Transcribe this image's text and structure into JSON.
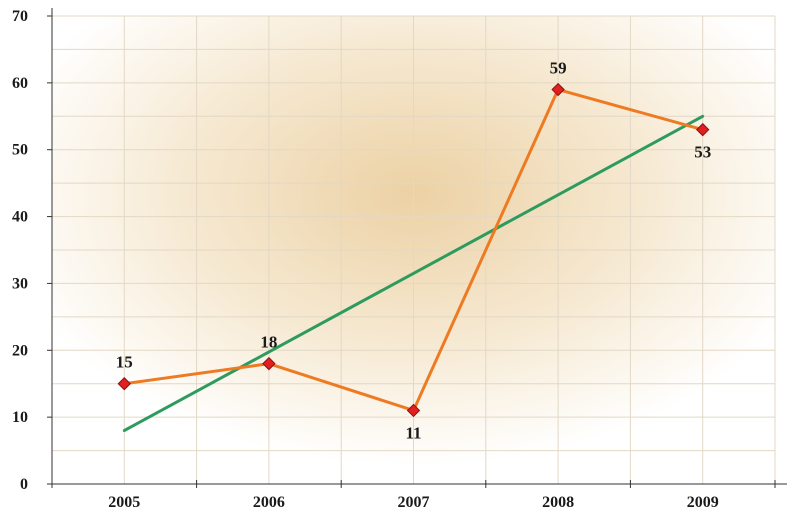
{
  "chart_data": {
    "type": "line",
    "title": "",
    "xlabel": "",
    "ylabel": "",
    "categories": [
      "2005",
      "2006",
      "2007",
      "2008",
      "2009"
    ],
    "ylim": [
      0,
      70
    ],
    "yticks": [
      0,
      10,
      20,
      30,
      40,
      50,
      60,
      70
    ],
    "grid": true,
    "legend": "none",
    "series": [
      {
        "values": [
          15,
          18,
          11,
          59,
          53
        ],
        "data_labels": [
          "15",
          "18",
          "11",
          "59",
          "53"
        ],
        "color": "#ee7a22",
        "marker": "diamond",
        "marker_color": "#e02020"
      }
    ],
    "trendline": {
      "kind": "linear",
      "start": 8,
      "end": 55,
      "color": "#2e9b5e"
    },
    "background": {
      "center_color": "#ecd1a4",
      "edge_color": "#ffffff"
    }
  }
}
